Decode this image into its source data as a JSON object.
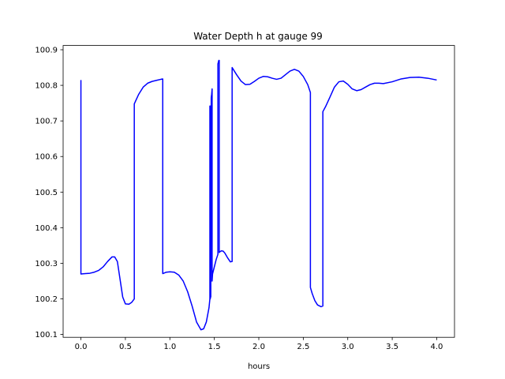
{
  "chart_data": {
    "type": "line",
    "title": "Water Depth h at gauge 99",
    "xlabel": "hours",
    "ylabel": "",
    "xlim": [
      -0.2,
      4.2
    ],
    "ylim": [
      100.092,
      100.912
    ],
    "xticks": [
      0.0,
      0.5,
      1.0,
      1.5,
      2.0,
      2.5,
      3.0,
      3.5,
      4.0
    ],
    "xtick_labels": [
      "0.0",
      "0.5",
      "1.0",
      "1.5",
      "2.0",
      "2.5",
      "3.0",
      "3.5",
      "4.0"
    ],
    "yticks": [
      100.1,
      100.2,
      100.3,
      100.4,
      100.5,
      100.6,
      100.7,
      100.8,
      100.9
    ],
    "ytick_labels": [
      "100.1",
      "100.2",
      "100.3",
      "100.4",
      "100.5",
      "100.6",
      "100.7",
      "100.8",
      "100.9"
    ],
    "grid": false,
    "legend": "none",
    "series": [
      {
        "color": "#0000ff",
        "x": [
          0.0,
          0.0,
          0.05,
          0.1,
          0.15,
          0.2,
          0.25,
          0.3,
          0.35,
          0.38,
          0.41,
          0.44,
          0.47,
          0.5,
          0.54,
          0.57,
          0.6,
          0.6,
          0.65,
          0.7,
          0.75,
          0.8,
          0.85,
          0.9,
          0.92,
          0.92,
          0.96,
          1.0,
          1.05,
          1.1,
          1.15,
          1.2,
          1.25,
          1.3,
          1.35,
          1.38,
          1.41,
          1.44,
          1.45,
          1.45,
          1.455,
          1.46,
          1.46,
          1.465,
          1.47,
          1.475,
          1.475,
          1.48,
          1.5,
          1.52,
          1.54,
          1.54,
          1.545,
          1.55,
          1.555,
          1.555,
          1.56,
          1.58,
          1.6,
          1.62,
          1.65,
          1.68,
          1.7,
          1.7,
          1.75,
          1.8,
          1.85,
          1.9,
          1.95,
          2.0,
          2.05,
          2.1,
          2.15,
          2.2,
          2.25,
          2.3,
          2.35,
          2.4,
          2.45,
          2.5,
          2.55,
          2.58,
          2.58,
          2.6,
          2.63,
          2.66,
          2.7,
          2.72,
          2.72,
          2.75,
          2.8,
          2.85,
          2.9,
          2.95,
          3.0,
          3.05,
          3.1,
          3.15,
          3.2,
          3.25,
          3.3,
          3.35,
          3.4,
          3.5,
          3.6,
          3.7,
          3.8,
          3.9,
          4.0
        ],
        "y": [
          100.815,
          100.27,
          100.271,
          100.272,
          100.275,
          100.28,
          100.29,
          100.305,
          100.318,
          100.318,
          100.305,
          100.255,
          100.205,
          100.186,
          100.185,
          100.19,
          100.2,
          100.748,
          100.775,
          100.795,
          100.806,
          100.811,
          100.814,
          100.817,
          100.818,
          100.271,
          100.275,
          100.276,
          100.275,
          100.267,
          100.25,
          100.22,
          100.18,
          100.135,
          100.113,
          100.116,
          100.135,
          100.175,
          100.2,
          100.742,
          100.2,
          100.742,
          100.205,
          100.765,
          100.775,
          100.79,
          100.25,
          100.27,
          100.29,
          100.31,
          100.325,
          100.86,
          100.865,
          100.87,
          100.87,
          100.33,
          100.332,
          100.335,
          100.334,
          100.328,
          100.315,
          100.304,
          100.305,
          100.85,
          100.83,
          100.812,
          100.802,
          100.803,
          100.811,
          100.82,
          100.825,
          100.824,
          100.82,
          100.817,
          100.82,
          100.83,
          100.84,
          100.845,
          100.84,
          100.825,
          100.802,
          100.78,
          100.232,
          100.215,
          100.195,
          100.183,
          100.178,
          100.18,
          100.726,
          100.74,
          100.767,
          100.795,
          100.81,
          100.812,
          100.803,
          100.79,
          100.785,
          100.788,
          100.795,
          100.802,
          100.806,
          100.806,
          100.805,
          100.81,
          100.818,
          100.822,
          100.823,
          100.82,
          100.815
        ]
      }
    ]
  }
}
